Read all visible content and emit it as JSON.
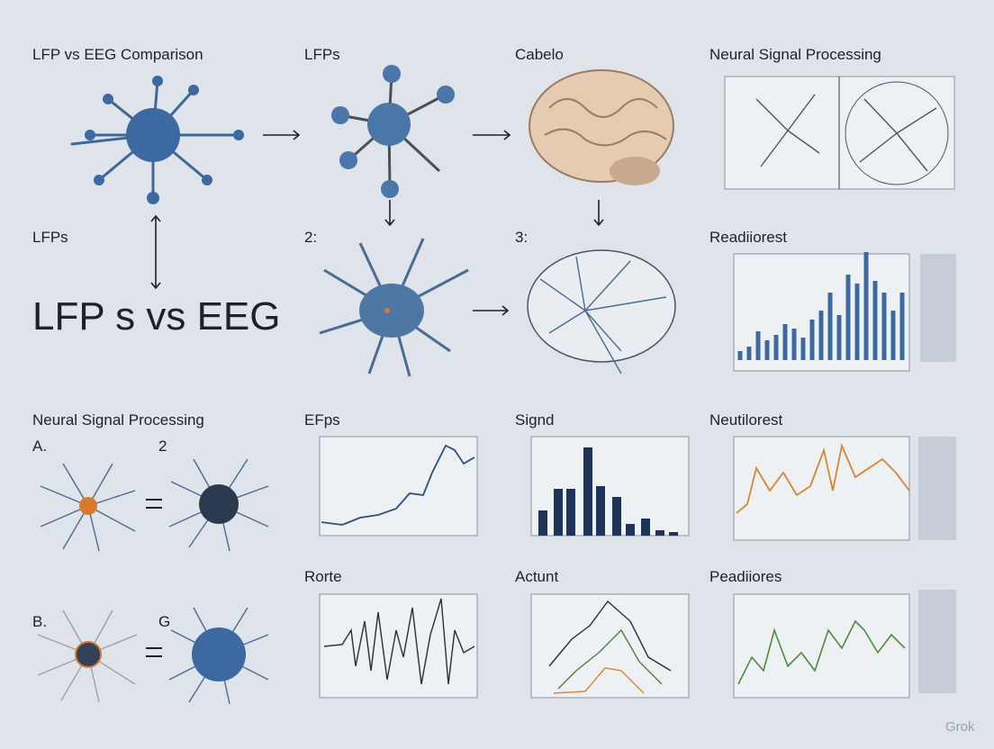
{
  "header": {
    "title": "LFP vs EEG Comparison"
  },
  "panels": [
    {
      "label": "LFPs"
    },
    {
      "label": "Cabelo"
    },
    {
      "label": "Neural Signal Processing"
    },
    {
      "label": "LFPs"
    },
    {
      "label": "LFP s vs EEG"
    },
    {
      "label": "2:"
    },
    {
      "label": "3:"
    },
    {
      "label": "Readiiorest"
    },
    {
      "label": "Neural Signal Processing"
    },
    {
      "label": "A."
    },
    {
      "label": "2"
    },
    {
      "label": "EFps"
    },
    {
      "label": "Signd"
    },
    {
      "label": "Neutilorest"
    },
    {
      "label": "B."
    },
    {
      "label": "G"
    },
    {
      "label": "Rorte"
    },
    {
      "label": "Actunt"
    },
    {
      "label": "Peadiiores"
    }
  ],
  "watermark": "Grok"
}
